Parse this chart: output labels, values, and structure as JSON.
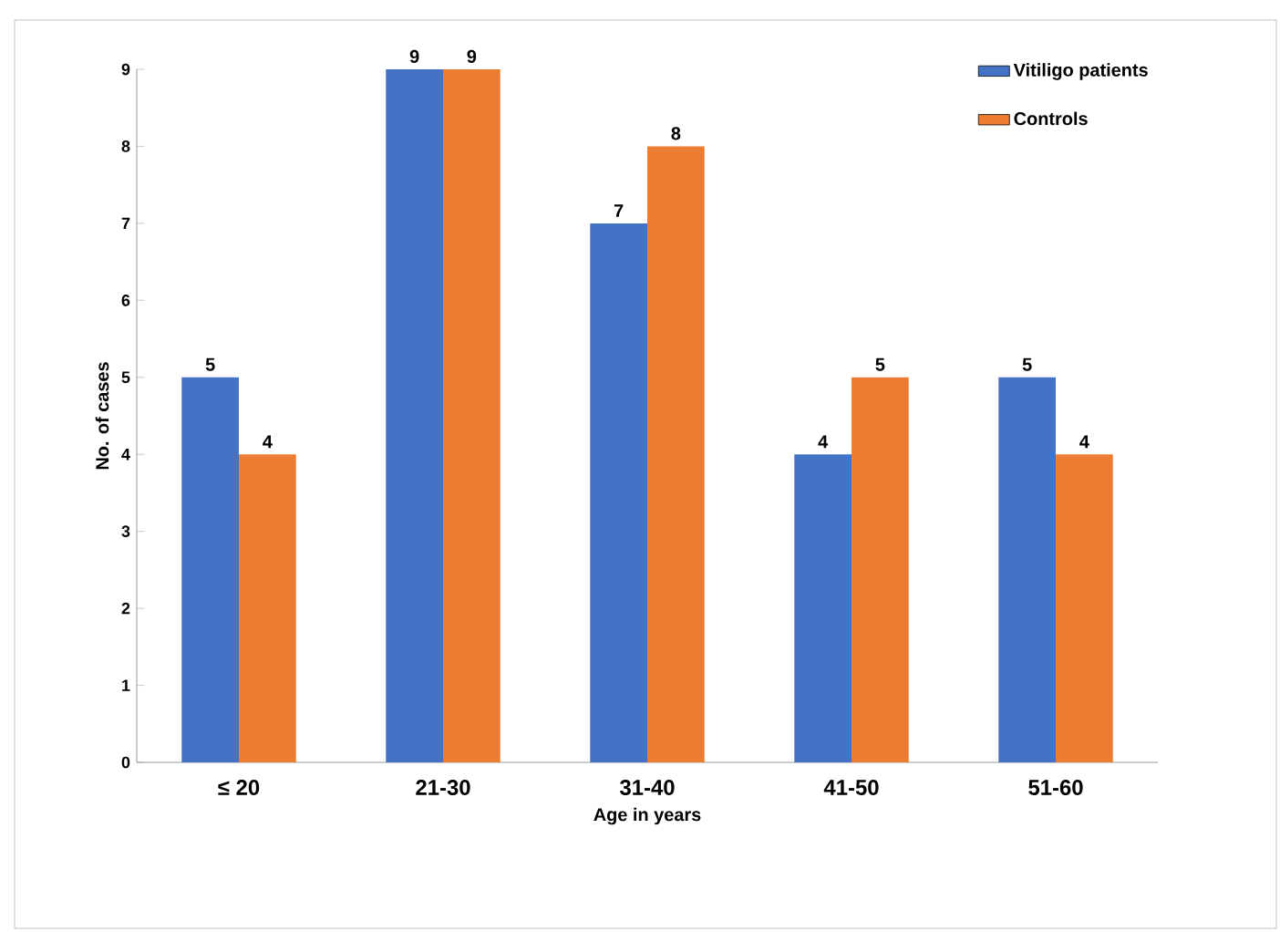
{
  "chart_data": {
    "type": "bar",
    "xlabel": "Age in years",
    "ylabel": "No. of cases",
    "categories": [
      "≤ 20",
      "21-30",
      "31-40",
      "41-50",
      "51-60"
    ],
    "series": [
      {
        "name": "Vitiligo patients",
        "color": "#4472c4",
        "values": [
          5,
          9,
          7,
          4,
          5
        ]
      },
      {
        "name": "Controls",
        "color": "#ed7d31",
        "values": [
          4,
          9,
          8,
          5,
          4
        ]
      }
    ],
    "ylim": [
      0,
      9
    ],
    "yticks": [
      0,
      1,
      2,
      3,
      4,
      5,
      6,
      7,
      8,
      9
    ],
    "data_labels": true,
    "legend": "top right",
    "grid": false
  }
}
